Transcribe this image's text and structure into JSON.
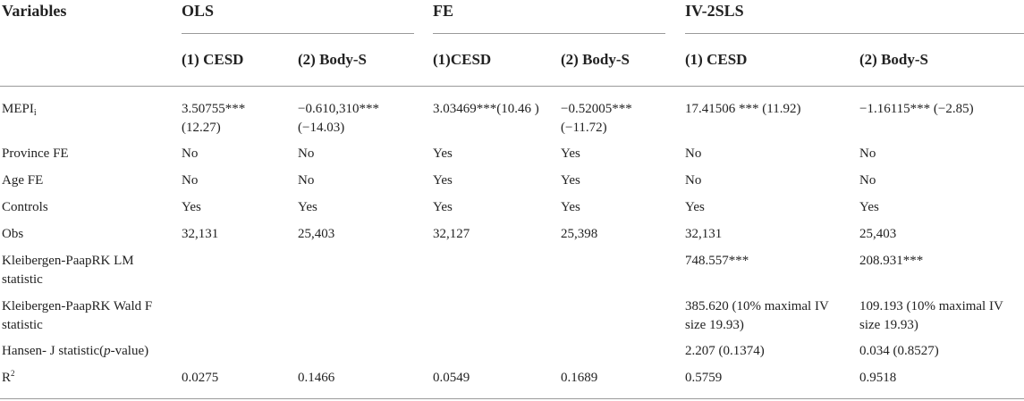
{
  "header": {
    "variables": "Variables",
    "groups": [
      "OLS",
      "FE",
      "IV-2SLS"
    ],
    "columns": [
      "(1) CESD",
      "(2) Body-S",
      "(1)CESD",
      "(2) Body-S",
      "(1) CESD",
      "(2) Body-S"
    ]
  },
  "rows": [
    {
      "label": "MEPI",
      "label_sub": "i",
      "cells": [
        [
          "3.50755***",
          "(12.27)"
        ],
        [
          "−0.610,310***",
          "(−14.03)"
        ],
        [
          "3.03469***(10.46 )"
        ],
        [
          "−0.52005***",
          "(−11.72)"
        ],
        [
          "17.41506 *** (11.92)"
        ],
        [
          "−1.16115*** (−2.85)"
        ]
      ]
    },
    {
      "label": "Province FE",
      "cells": [
        [
          "No"
        ],
        [
          "No"
        ],
        [
          "Yes"
        ],
        [
          "Yes"
        ],
        [
          "No"
        ],
        [
          "No"
        ]
      ]
    },
    {
      "label": "Age FE",
      "cells": [
        [
          "No"
        ],
        [
          "No"
        ],
        [
          "Yes"
        ],
        [
          "Yes"
        ],
        [
          "No"
        ],
        [
          "No"
        ]
      ]
    },
    {
      "label": "Controls",
      "cells": [
        [
          "Yes"
        ],
        [
          "Yes"
        ],
        [
          "Yes"
        ],
        [
          "Yes"
        ],
        [
          "Yes"
        ],
        [
          "Yes"
        ]
      ]
    },
    {
      "label": "Obs",
      "cells": [
        [
          "32,131"
        ],
        [
          "25,403"
        ],
        [
          "32,127"
        ],
        [
          "25,398"
        ],
        [
          "32,131"
        ],
        [
          "25,403"
        ]
      ]
    },
    {
      "label": "Kleibergen-PaapRK LM",
      "label2": "statistic",
      "cells": [
        [],
        [],
        [],
        [],
        [
          "748.557***"
        ],
        [
          "208.931***"
        ]
      ]
    },
    {
      "label": "Kleibergen-PaapRK Wald F",
      "label2": "statistic",
      "cells": [
        [],
        [],
        [],
        [],
        [
          "385.620 (10% maximal IV",
          "size 19.93)"
        ],
        [
          "109.193 (10% maximal IV",
          "size 19.93)"
        ]
      ]
    },
    {
      "label": "Hansen- J statistic(",
      "label_italic": "p",
      "label_tail": "-value)",
      "cells": [
        [],
        [],
        [],
        [],
        [
          "2.207 (0.1374)"
        ],
        [
          "0.034 (0.8527)"
        ]
      ]
    },
    {
      "label": "R",
      "label_sup": "2",
      "cells": [
        [
          "0.0275"
        ],
        [
          "0.1466"
        ],
        [
          "0.0549"
        ],
        [
          "0.1689"
        ],
        [
          "0.5759"
        ],
        [
          "0.9518"
        ]
      ]
    }
  ]
}
